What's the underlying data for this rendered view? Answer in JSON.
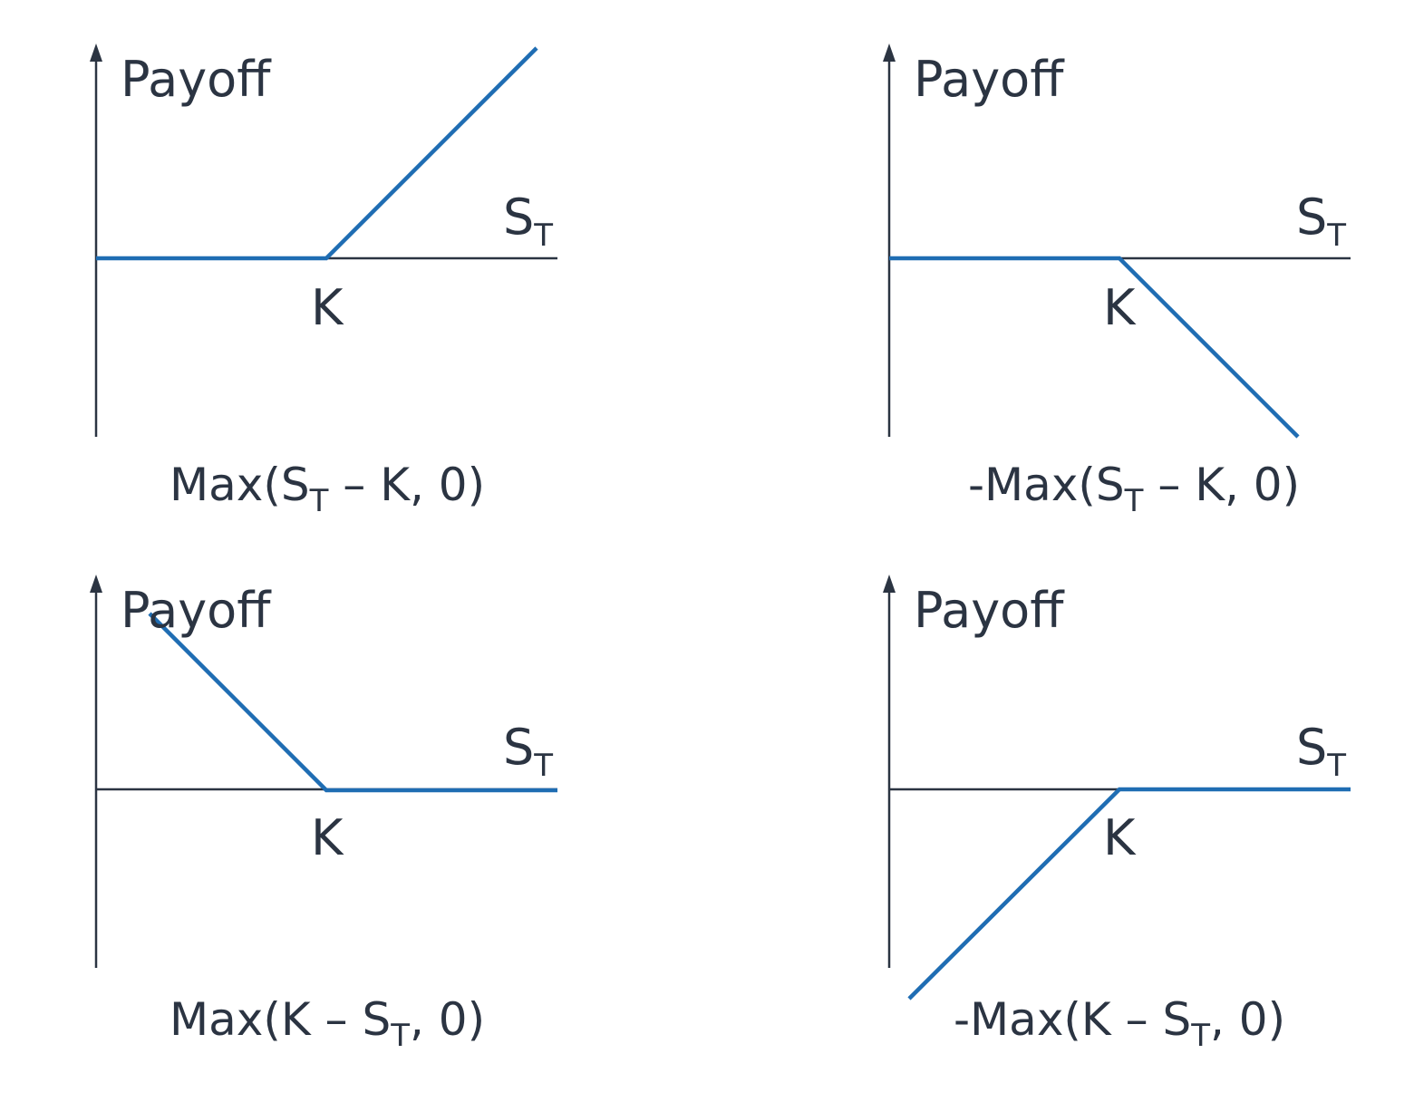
{
  "diagrams": [
    {
      "id": "long-call",
      "y_label": "Payoff",
      "x_label_main": "S",
      "x_label_sub": "T",
      "strike_label": "K",
      "formula": {
        "prefix": "Max(S",
        "sub": "T",
        "suffix": " – K, 0)"
      },
      "shape": "long-call"
    },
    {
      "id": "short-call",
      "y_label": "Payoff",
      "x_label_main": "S",
      "x_label_sub": "T",
      "strike_label": "K",
      "formula": {
        "prefix": "-Max(S",
        "sub": "T",
        "suffix": " – K, 0)"
      },
      "shape": "short-call"
    },
    {
      "id": "long-put",
      "y_label": "Payoff",
      "x_label_main": "S",
      "x_label_sub": "T",
      "strike_label": "K",
      "formula": {
        "prefix": "Max(K – S",
        "sub": "T",
        "suffix": ", 0)"
      },
      "shape": "long-put"
    },
    {
      "id": "short-put",
      "y_label": "Payoff",
      "x_label_main": "S",
      "x_label_sub": "T",
      "strike_label": "K",
      "formula": {
        "prefix": "-Max(K – S",
        "sub": "T",
        "suffix": ", 0)"
      },
      "shape": "short-put"
    }
  ],
  "colors": {
    "axis": "#2b3442",
    "payoff": "#1f6db3",
    "background": "#ffffff"
  }
}
